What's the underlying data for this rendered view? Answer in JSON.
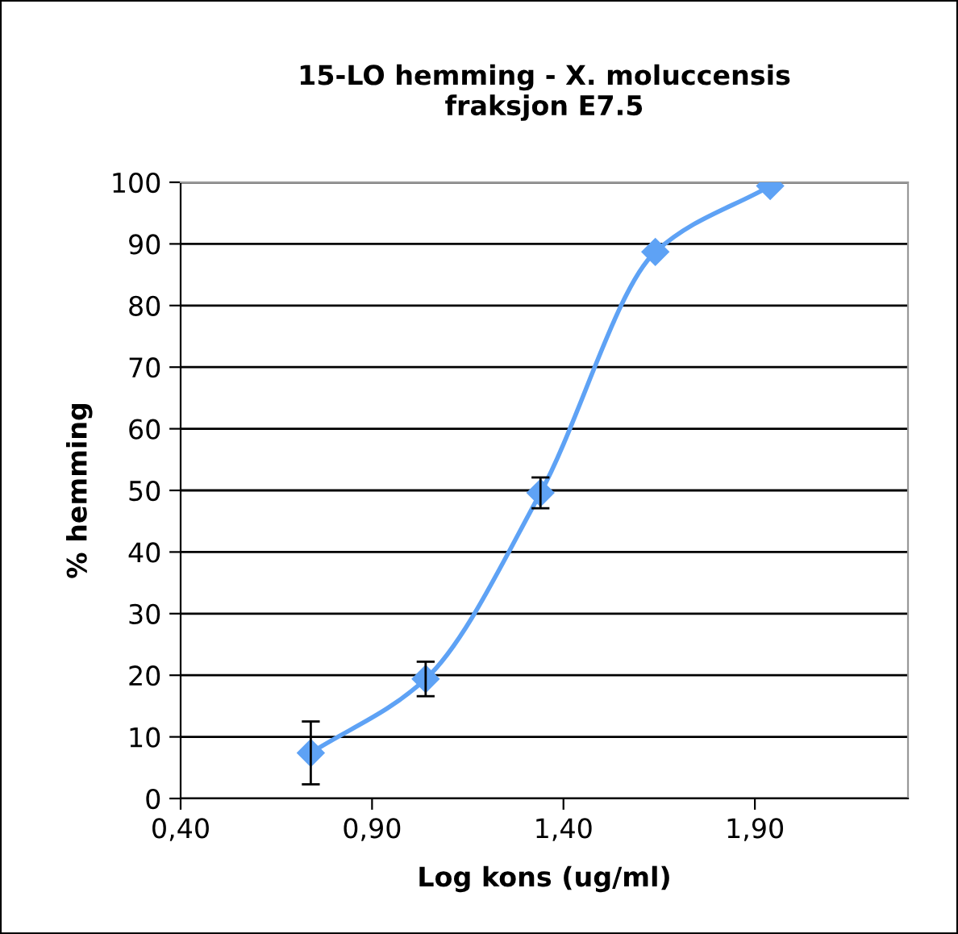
{
  "chart_data": {
    "type": "line",
    "title": "15-LO hemming - X. moluccensis\nfraksjon E7.5",
    "xlabel": "Log kons (ug/ml)",
    "ylabel": "% hemming",
    "x": [
      0.74,
      1.04,
      1.34,
      1.64,
      1.94
    ],
    "series": [
      {
        "color": "#5ea2f5",
        "values": [
          7.4,
          19.4,
          49.6,
          88.7,
          99.4
        ],
        "errors": [
          5.1,
          2.8,
          2.5,
          null,
          null
        ]
      }
    ],
    "xlim": [
      0.4,
      2.3
    ],
    "xticks": [
      {
        "value": 0.4,
        "label": "0,40"
      },
      {
        "value": 0.9,
        "label": "0,90"
      },
      {
        "value": 1.4,
        "label": "1,40"
      },
      {
        "value": 1.9,
        "label": "1,90"
      }
    ],
    "ylim": [
      0,
      100
    ],
    "yticks": [
      0,
      10,
      20,
      30,
      40,
      50,
      60,
      70,
      80,
      90,
      100
    ],
    "grid": "y",
    "marker": "diamond",
    "line_style": "solid",
    "legend": false
  }
}
